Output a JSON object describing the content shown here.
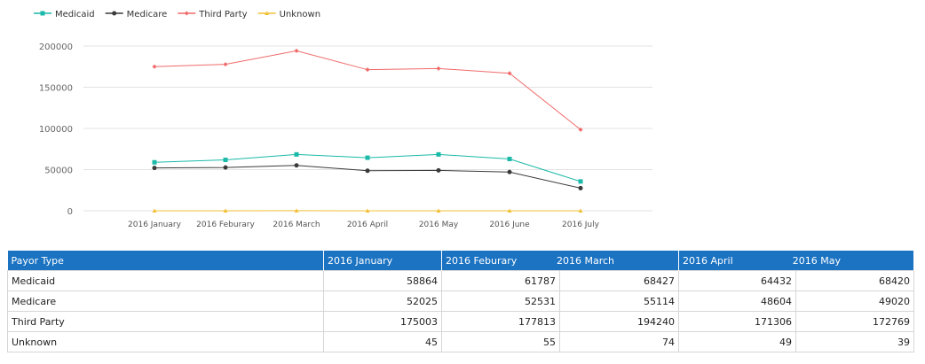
{
  "chart_data": {
    "type": "line",
    "categories": [
      "2016 January",
      "2016 Feburary",
      "2016 March",
      "2016 April",
      "2016 May",
      "2016 June",
      "2016 July"
    ],
    "series": [
      {
        "name": "Medicaid",
        "color": "#1ab9a8",
        "marker": "square",
        "values": [
          58864,
          61787,
          68427,
          64432,
          68420,
          62900,
          35600
        ]
      },
      {
        "name": "Medicare",
        "color": "#3a3a3a",
        "marker": "circle",
        "values": [
          52025,
          52531,
          55114,
          48604,
          49020,
          47000,
          27500
        ]
      },
      {
        "name": "Third Party",
        "color": "#f06a6a",
        "marker": "diamond",
        "values": [
          175003,
          177813,
          194240,
          171306,
          172769,
          167000,
          98500
        ]
      },
      {
        "name": "Unknown",
        "color": "#f2c037",
        "marker": "triangle",
        "values": [
          45,
          55,
          74,
          49,
          39,
          45,
          30
        ]
      }
    ],
    "yticks": [
      0,
      50000,
      100000,
      150000,
      200000
    ],
    "ylim": [
      0,
      200000
    ],
    "grid": true,
    "legend_position": "top-left"
  },
  "table": {
    "headers": [
      "Payor Type",
      "2016 January",
      "2016 Feburary",
      "2016 March",
      "2016 April",
      "2016 May"
    ],
    "rows": [
      {
        "label": "Medicaid",
        "values": [
          "58864",
          "61787",
          "68427",
          "64432",
          "68420"
        ]
      },
      {
        "label": "Medicare",
        "values": [
          "52025",
          "52531",
          "55114",
          "48604",
          "49020"
        ]
      },
      {
        "label": "Third Party",
        "values": [
          "175003",
          "177813",
          "194240",
          "171306",
          "172769"
        ]
      },
      {
        "label": "Unknown",
        "values": [
          "45",
          "55",
          "74",
          "49",
          "39"
        ]
      }
    ]
  }
}
